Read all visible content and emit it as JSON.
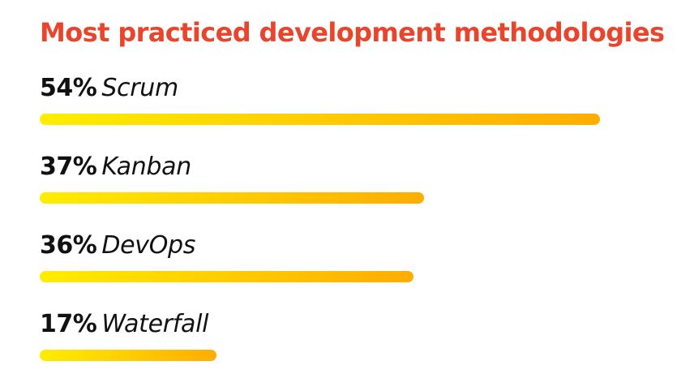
{
  "chart_data": {
    "type": "bar",
    "orientation": "horizontal",
    "title": "Most practiced development methodologies",
    "categories": [
      "Scrum",
      "Kanban",
      "DevOps",
      "Waterfall"
    ],
    "values": [
      54,
      37,
      36,
      17
    ],
    "value_labels": [
      "54%",
      "37%",
      "36%",
      "17%"
    ],
    "unit": "%",
    "grid": false,
    "legend": "none"
  },
  "colors": {
    "title": "#e8452c",
    "bar_start": "#ffed00",
    "bar_end": "#ffad00",
    "label_text": "#111111",
    "background": "#ffffff"
  }
}
